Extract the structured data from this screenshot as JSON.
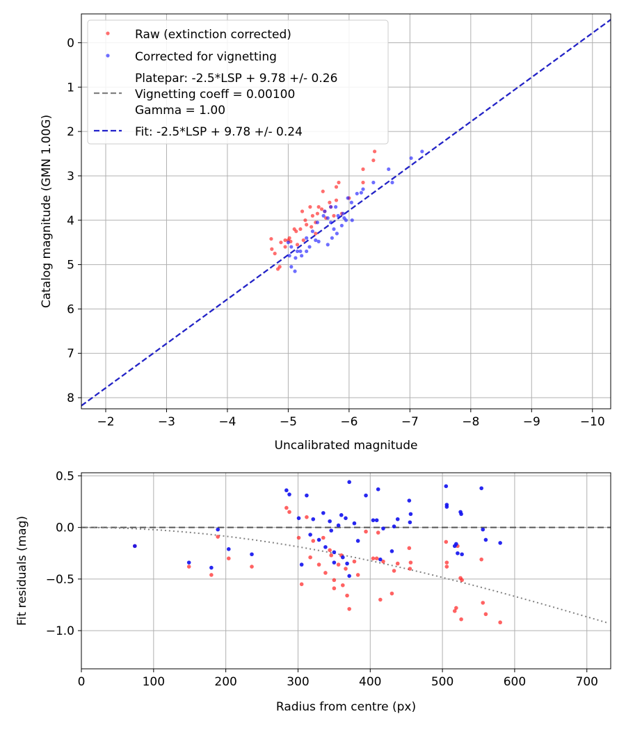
{
  "chart_data": [
    {
      "type": "scatter",
      "xlabel": "Uncalibrated magnitude",
      "ylabel": "Catalog magnitude (GMN 1.00G)",
      "xlim": [
        -1.6,
        -10.3
      ],
      "ylim": [
        8.25,
        -0.65
      ],
      "x_ticks": [
        -2,
        -3,
        -4,
        -5,
        -6,
        -7,
        -8,
        -9,
        -10
      ],
      "x_tick_labels": [
        "−2",
        "−3",
        "−4",
        "−5",
        "−6",
        "−7",
        "−8",
        "−9",
        "−10"
      ],
      "y_ticks": [
        0,
        1,
        2,
        3,
        4,
        5,
        6,
        7,
        8
      ],
      "y_tick_labels": [
        "0",
        "1",
        "2",
        "3",
        "4",
        "5",
        "6",
        "7",
        "8"
      ],
      "grid": true,
      "legend_position": "top-left",
      "legend": {
        "raw": "Raw (extinction corrected)",
        "corrected": "Corrected for vignetting",
        "platepar_lines": [
          "Platepar: -2.5*LSP + 9.78 +/- 0.26",
          "Vignetting coeff = 0.00100",
          "Gamma = 1.00"
        ],
        "fit": "Fit: -2.5*LSP + 9.78 +/- 0.24"
      },
      "colors": {
        "raw": "#ff2020",
        "corrected": "#2020ff",
        "fit": "#2222cc",
        "platepar": "#808080"
      },
      "lines": [
        {
          "name": "platepar",
          "slope": 1.0,
          "intercept": 9.78
        },
        {
          "name": "fit",
          "slope": 1.0,
          "intercept": 9.78
        }
      ],
      "series": [
        {
          "name": "raw",
          "points": [
            [
              -6.42,
              2.45
            ],
            [
              -6.4,
              2.65
            ],
            [
              -6.23,
              2.85
            ],
            [
              -6.23,
              3.15
            ],
            [
              -5.83,
              3.15
            ],
            [
              -5.79,
              3.25
            ],
            [
              -5.57,
              3.35
            ],
            [
              -6.0,
              3.5
            ],
            [
              -4.72,
              4.42
            ],
            [
              -4.73,
              4.65
            ],
            [
              -4.78,
              4.75
            ],
            [
              -4.83,
              5.1
            ],
            [
              -4.86,
              5.05
            ],
            [
              -4.95,
              4.45
            ],
            [
              -5.0,
              4.45
            ],
            [
              -5.02,
              4.4
            ],
            [
              -5.13,
              4.25
            ],
            [
              -5.2,
              4.2
            ],
            [
              -5.23,
              3.8
            ],
            [
              -5.28,
              4.0
            ],
            [
              -5.3,
              4.1
            ],
            [
              -5.36,
              3.7
            ],
            [
              -5.4,
              3.9
            ],
            [
              -5.45,
              4.05
            ],
            [
              -5.48,
              3.85
            ],
            [
              -5.5,
              3.7
            ],
            [
              -5.55,
              3.75
            ],
            [
              -5.62,
              3.95
            ],
            [
              -5.68,
              3.6
            ],
            [
              -5.75,
              3.9
            ],
            [
              -5.79,
              3.55
            ],
            [
              -5.88,
              3.85
            ],
            [
              -5.1,
              4.2
            ],
            [
              -5.25,
              4.45
            ],
            [
              -5.38,
              4.15
            ],
            [
              -5.15,
              4.55
            ],
            [
              -4.95,
              4.6
            ],
            [
              -5.45,
              4.3
            ],
            [
              -5.6,
              3.8
            ],
            [
              -5.7,
              3.7
            ],
            [
              -5.04,
              4.48
            ],
            [
              -4.88,
              4.5
            ]
          ]
        },
        {
          "name": "corrected",
          "points": [
            [
              -7.2,
              2.45
            ],
            [
              -7.02,
              2.6
            ],
            [
              -6.65,
              2.85
            ],
            [
              -6.71,
              3.15
            ],
            [
              -6.4,
              3.15
            ],
            [
              -6.23,
              3.3
            ],
            [
              -6.13,
              3.4
            ],
            [
              -6.2,
              3.38
            ],
            [
              -5.98,
              3.5
            ],
            [
              -6.04,
              3.6
            ],
            [
              -5.7,
              3.7
            ],
            [
              -5.78,
              3.7
            ],
            [
              -5.82,
              3.9
            ],
            [
              -5.9,
              3.85
            ],
            [
              -5.95,
              4.0
            ],
            [
              -6.05,
              4.0
            ],
            [
              -5.6,
              3.8
            ],
            [
              -5.65,
              3.95
            ],
            [
              -5.7,
              4.05
            ],
            [
              -5.75,
              4.2
            ],
            [
              -5.8,
              4.3
            ],
            [
              -5.72,
              4.4
            ],
            [
              -5.65,
              4.55
            ],
            [
              -5.5,
              4.48
            ],
            [
              -5.4,
              4.25
            ],
            [
              -5.45,
              4.45
            ],
            [
              -5.3,
              4.4
            ],
            [
              -5.3,
              4.7
            ],
            [
              -5.35,
              4.6
            ],
            [
              -5.2,
              4.7
            ],
            [
              -5.22,
              4.8
            ],
            [
              -5.15,
              4.7
            ],
            [
              -5.12,
              4.85
            ],
            [
              -5.05,
              4.6
            ],
            [
              -5.02,
              4.8
            ],
            [
              -5.0,
              4.5
            ],
            [
              -5.05,
              5.05
            ],
            [
              -5.11,
              5.15
            ],
            [
              -5.58,
              3.9
            ],
            [
              -5.48,
              4.05
            ],
            [
              -5.88,
              4.12
            ],
            [
              -5.92,
              3.95
            ]
          ]
        }
      ]
    },
    {
      "type": "scatter",
      "xlabel": "Radius from centre (px)",
      "ylabel": "Fit residuals (mag)",
      "xlim": [
        0,
        733
      ],
      "ylim": [
        -1.37,
        0.53
      ],
      "x_ticks": [
        0,
        100,
        200,
        300,
        400,
        500,
        600,
        700
      ],
      "x_tick_labels": [
        "0",
        "100",
        "200",
        "300",
        "400",
        "500",
        "600",
        "700"
      ],
      "y_ticks": [
        0.5,
        0.0,
        -0.5,
        -1.0
      ],
      "y_tick_labels": [
        "0.5",
        "0.0",
        "−0.5",
        "−1.0"
      ],
      "grid": true,
      "colors": {
        "raw": "#ff2020",
        "corrected": "#1010ee",
        "zero_line": "#555555",
        "vignetting_curve": "#808080"
      },
      "reference_lines": [
        {
          "name": "zero",
          "y": 0.0,
          "style": "dashed"
        },
        {
          "name": "vignetting-model",
          "style": "dotted",
          "coefficient": 0.001
        }
      ],
      "series": [
        {
          "name": "raw",
          "points": [
            [
              74,
              -0.18
            ],
            [
              149,
              -0.38
            ],
            [
              180,
              -0.46
            ],
            [
              189,
              -0.09
            ],
            [
              204,
              -0.3
            ],
            [
              236,
              -0.38
            ],
            [
              284,
              0.19
            ],
            [
              288,
              0.15
            ],
            [
              301,
              -0.1
            ],
            [
              305,
              -0.55
            ],
            [
              312,
              0.1
            ],
            [
              317,
              -0.29
            ],
            [
              321,
              -0.13
            ],
            [
              329,
              -0.36
            ],
            [
              335,
              -0.1
            ],
            [
              338,
              -0.44
            ],
            [
              344,
              -0.22
            ],
            [
              346,
              -0.27
            ],
            [
              350,
              -0.51
            ],
            [
              350,
              -0.59
            ],
            [
              356,
              -0.36
            ],
            [
              360,
              -0.27
            ],
            [
              362,
              -0.56
            ],
            [
              366,
              -0.4
            ],
            [
              368,
              -0.66
            ],
            [
              371,
              -0.79
            ],
            [
              378,
              -0.33
            ],
            [
              383,
              -0.46
            ],
            [
              394,
              -0.04
            ],
            [
              404,
              -0.3
            ],
            [
              409,
              -0.3
            ],
            [
              411,
              -0.05
            ],
            [
              414,
              -0.7
            ],
            [
              418,
              -0.33
            ],
            [
              430,
              -0.64
            ],
            [
              433,
              -0.42
            ],
            [
              438,
              -0.35
            ],
            [
              454,
              -0.2
            ],
            [
              455,
              -0.4
            ],
            [
              456,
              -0.34
            ],
            [
              505,
              -0.14
            ],
            [
              506,
              -0.34
            ],
            [
              506,
              -0.38
            ],
            [
              517,
              -0.81
            ],
            [
              519,
              -0.78
            ],
            [
              521,
              -0.18
            ],
            [
              525,
              -0.49
            ],
            [
              526,
              -0.89
            ],
            [
              527,
              -0.51
            ],
            [
              554,
              -0.31
            ],
            [
              556,
              -0.73
            ],
            [
              560,
              -0.84
            ],
            [
              580,
              -0.92
            ]
          ]
        },
        {
          "name": "corrected",
          "points": [
            [
              74,
              -0.18
            ],
            [
              149,
              -0.34
            ],
            [
              180,
              -0.39
            ],
            [
              189,
              -0.02
            ],
            [
              204,
              -0.21
            ],
            [
              236,
              -0.26
            ],
            [
              284,
              0.36
            ],
            [
              288,
              0.32
            ],
            [
              301,
              0.09
            ],
            [
              305,
              -0.36
            ],
            [
              312,
              0.31
            ],
            [
              317,
              -0.07
            ],
            [
              321,
              0.08
            ],
            [
              329,
              -0.12
            ],
            [
              335,
              0.14
            ],
            [
              338,
              -0.19
            ],
            [
              344,
              0.06
            ],
            [
              346,
              -0.03
            ],
            [
              350,
              -0.24
            ],
            [
              350,
              -0.34
            ],
            [
              356,
              0.02
            ],
            [
              360,
              0.12
            ],
            [
              362,
              -0.29
            ],
            [
              366,
              0.09
            ],
            [
              368,
              -0.35
            ],
            [
              371,
              -0.47
            ],
            [
              371,
              0.44
            ],
            [
              378,
              0.04
            ],
            [
              383,
              -0.13
            ],
            [
              394,
              0.31
            ],
            [
              404,
              0.07
            ],
            [
              409,
              0.07
            ],
            [
              411,
              0.37
            ],
            [
              414,
              -0.31
            ],
            [
              418,
              -0.01
            ],
            [
              430,
              -0.23
            ],
            [
              433,
              0.01
            ],
            [
              438,
              0.08
            ],
            [
              454,
              0.26
            ],
            [
              455,
              0.05
            ],
            [
              456,
              0.13
            ],
            [
              505,
              0.4
            ],
            [
              506,
              0.22
            ],
            [
              506,
              0.2
            ],
            [
              517,
              -0.18
            ],
            [
              519,
              -0.16
            ],
            [
              521,
              -0.25
            ],
            [
              525,
              0.15
            ],
            [
              526,
              0.13
            ],
            [
              527,
              -0.26
            ],
            [
              554,
              0.38
            ],
            [
              556,
              -0.02
            ],
            [
              560,
              -0.12
            ],
            [
              580,
              -0.15
            ]
          ]
        }
      ]
    }
  ]
}
